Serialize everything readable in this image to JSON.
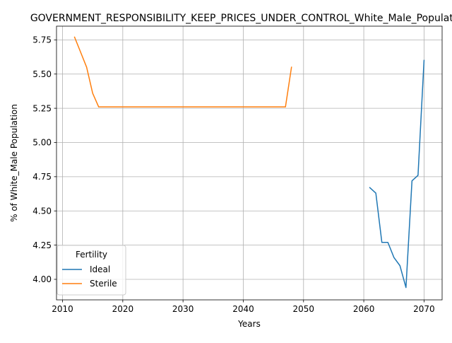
{
  "chart_data": {
    "type": "line",
    "title": "GOVERNMENT_RESPONSIBILITY_KEEP_PRICES_UNDER_CONTROL_White_Male_Population",
    "xlabel": "Years",
    "ylabel": "% of White_Male Population",
    "xlim": [
      2009,
      2073
    ],
    "ylim": [
      3.85,
      5.85
    ],
    "xticks": [
      2010,
      2020,
      2030,
      2040,
      2050,
      2060,
      2070
    ],
    "xtick_labels": [
      "2010",
      "2020",
      "2030",
      "2040",
      "2050",
      "2060",
      "2070"
    ],
    "yticks": [
      4.0,
      4.25,
      4.5,
      4.75,
      5.0,
      5.25,
      5.5,
      5.75
    ],
    "ytick_labels": [
      "4.00",
      "4.25",
      "4.50",
      "4.75",
      "5.00",
      "5.25",
      "5.50",
      "5.75"
    ],
    "grid": true,
    "legend": {
      "title": "Fertility",
      "placement": "lower-left"
    },
    "series": [
      {
        "name": "Ideal",
        "color": "#1f77b4",
        "x": [
          2061,
          2062,
          2063,
          2064,
          2065,
          2066,
          2067,
          2068,
          2069,
          2070
        ],
        "y": [
          4.67,
          4.63,
          4.27,
          4.27,
          4.16,
          4.1,
          3.94,
          4.72,
          4.76,
          5.6
        ]
      },
      {
        "name": "Sterile",
        "color": "#ff7f0e",
        "x": [
          2012,
          2013,
          2014,
          2015,
          2016,
          2017,
          2018,
          2019,
          2020,
          2021,
          2022,
          2023,
          2024,
          2025,
          2026,
          2027,
          2028,
          2029,
          2030,
          2031,
          2032,
          2033,
          2034,
          2035,
          2036,
          2037,
          2038,
          2039,
          2040,
          2041,
          2042,
          2043,
          2044,
          2045,
          2046,
          2047,
          2048
        ],
        "y": [
          5.77,
          5.66,
          5.55,
          5.36,
          5.26,
          5.26,
          5.26,
          5.26,
          5.26,
          5.26,
          5.26,
          5.26,
          5.26,
          5.26,
          5.26,
          5.26,
          5.26,
          5.26,
          5.26,
          5.26,
          5.26,
          5.26,
          5.26,
          5.26,
          5.26,
          5.26,
          5.26,
          5.26,
          5.26,
          5.26,
          5.26,
          5.26,
          5.26,
          5.26,
          5.26,
          5.26,
          5.55
        ]
      }
    ]
  }
}
